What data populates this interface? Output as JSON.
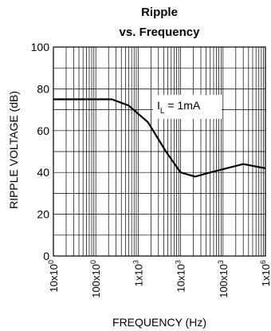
{
  "chart_data": {
    "type": "line",
    "title_line1": "Ripple",
    "title_line2": "vs. Frequency",
    "xlabel": "FREQUENCY (Hz)",
    "ylabel": "RIPPLE VOLTAGE (dB)",
    "x_scale": "log",
    "xlim": [
      10,
      1000000
    ],
    "ylim": [
      0,
      100
    ],
    "y_ticks": [
      0,
      20,
      40,
      60,
      80,
      100
    ],
    "y_tick_labels": [
      "0",
      "20",
      "40",
      "60",
      "80",
      "100"
    ],
    "x_ticks": [
      10,
      100,
      1000,
      10000,
      100000,
      1000000
    ],
    "x_tick_labels": [
      {
        "base": "10x10",
        "exp": "0"
      },
      {
        "base": "100x10",
        "exp": "0"
      },
      {
        "base": "1x10",
        "exp": "3"
      },
      {
        "base": "10x10",
        "exp": "3"
      },
      {
        "base": "100x10",
        "exp": "3"
      },
      {
        "base": "1x10",
        "exp": "6"
      }
    ],
    "grid": true,
    "annotation": {
      "main": "I",
      "sub": "L",
      "rest": " = 1mA"
    },
    "series": [
      {
        "x": [
          10,
          35,
          240,
          600,
          1700,
          4500,
          10000,
          22000,
          50000,
          300000,
          1000000
        ],
        "y": [
          75,
          75,
          75,
          72,
          64,
          50,
          40,
          38,
          40,
          44,
          42
        ]
      }
    ]
  }
}
